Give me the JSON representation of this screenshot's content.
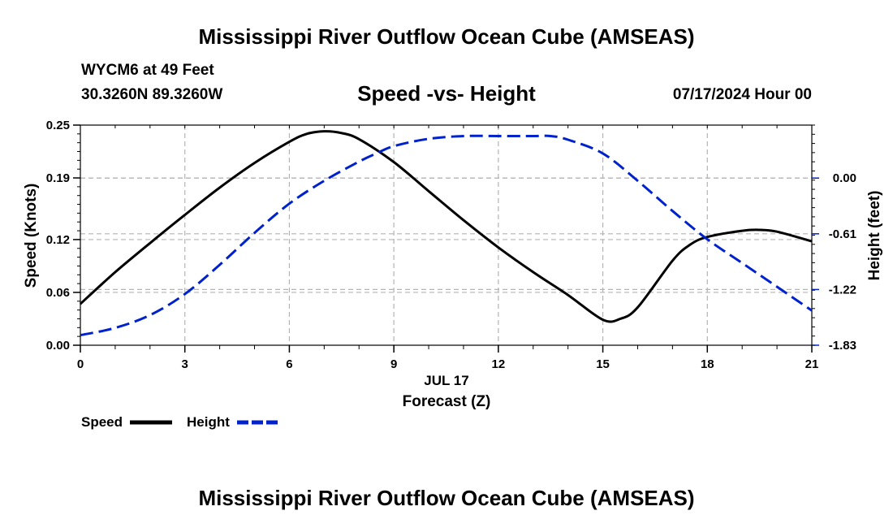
{
  "page": {
    "title_top": "Mississippi River Outflow Ocean Cube (AMSEAS)",
    "station": "WYCM6 at 49 Feet",
    "coords": "30.3260N  89.3260W",
    "subtitle": "Speed -vs- Height",
    "datetime": "07/17/2024 Hour 00",
    "title_bottom": "Mississippi River Outflow Ocean Cube (AMSEAS)"
  },
  "chart_data": {
    "type": "line",
    "title": "Speed -vs- Height",
    "xlabel": "Forecast (Z)",
    "xlabel_date": "JUL 17",
    "ylabel_left": "Speed (Knots)",
    "ylabel_right": "Height (feet)",
    "x_ticks": [
      "0",
      "3",
      "6",
      "9",
      "12",
      "15",
      "18",
      "21"
    ],
    "x_range": [
      0,
      21
    ],
    "y_left_ticks": [
      "0.00",
      "0.06",
      "0.12",
      "0.19",
      "0.25"
    ],
    "y_left_range": [
      0.0,
      0.25
    ],
    "y_right_ticks": [
      "-1.83",
      "-1.22",
      "-0.61",
      "0.00"
    ],
    "y_right_range": [
      -1.83,
      0.58
    ],
    "grid": true,
    "legend": "bottom-left",
    "series": [
      {
        "name": "Speed",
        "axis": "left",
        "color": "#000000",
        "style": "solid",
        "x": [
          0,
          1,
          2,
          3,
          4,
          5,
          6,
          6.5,
          7,
          7.5,
          8,
          9,
          10,
          11,
          12,
          13,
          14,
          15,
          15.5,
          16,
          17,
          17.5,
          18,
          19,
          19.5,
          20,
          21
        ],
        "values": [
          0.047,
          0.083,
          0.116,
          0.148,
          0.179,
          0.207,
          0.231,
          0.24,
          0.243,
          0.241,
          0.234,
          0.208,
          0.175,
          0.142,
          0.111,
          0.083,
          0.057,
          0.029,
          0.03,
          0.043,
          0.096,
          0.114,
          0.123,
          0.13,
          0.131,
          0.129,
          0.118
        ]
      },
      {
        "name": "Height",
        "axis": "right",
        "color": "#0022cc",
        "style": "dashed",
        "x": [
          0,
          1,
          2,
          3,
          4,
          5,
          6,
          7,
          8,
          8.5,
          9,
          10,
          11,
          12,
          13,
          13.5,
          14,
          15,
          16,
          17,
          18,
          19,
          20,
          21
        ],
        "values": [
          -1.72,
          -1.64,
          -1.5,
          -1.27,
          -0.95,
          -0.6,
          -0.28,
          -0.03,
          0.18,
          0.27,
          0.35,
          0.43,
          0.46,
          0.46,
          0.46,
          0.46,
          0.42,
          0.27,
          -0.03,
          -0.36,
          -0.67,
          -0.93,
          -1.19,
          -1.45
        ]
      }
    ]
  }
}
